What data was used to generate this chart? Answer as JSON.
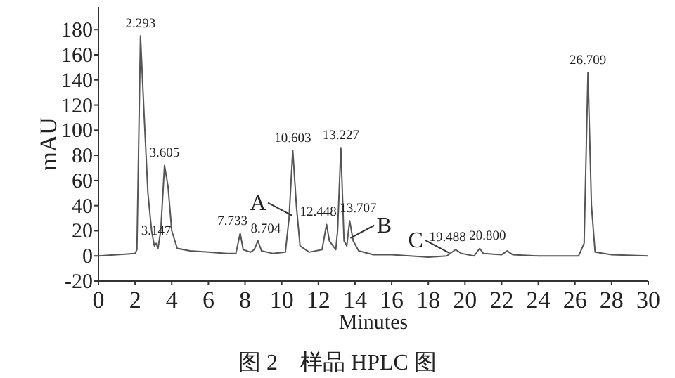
{
  "chart_data": {
    "type": "line",
    "xlabel": "Minutes",
    "ylabel": "mAU",
    "xlim": [
      0,
      30
    ],
    "xticks": [
      0,
      2,
      4,
      6,
      8,
      10,
      12,
      14,
      16,
      18,
      20,
      22,
      24,
      26,
      28,
      30
    ],
    "ylim": [
      -20,
      198
    ],
    "yticks": [
      -20,
      0,
      20,
      40,
      60,
      80,
      100,
      120,
      140,
      160,
      180
    ],
    "grid": false,
    "line_style": "solid",
    "series": [
      {
        "color": "#555555",
        "x": [
          0,
          2.0,
          2.1,
          2.293,
          2.5,
          2.7,
          2.9,
          3.05,
          3.147,
          3.25,
          3.4,
          3.605,
          3.8,
          4.0,
          4.3,
          5,
          6,
          7,
          7.5,
          7.733,
          7.9,
          8.3,
          8.5,
          8.704,
          8.9,
          9.5,
          10.2,
          10.4,
          10.603,
          10.8,
          11,
          11.5,
          12.2,
          12.448,
          12.6,
          12.8,
          12.95,
          13.05,
          13.227,
          13.4,
          13.55,
          13.707,
          13.9,
          14.2,
          15,
          16,
          17,
          18,
          19,
          19.488,
          19.8,
          20.5,
          20.8,
          21.0,
          22,
          22.3,
          22.6,
          24,
          25.5,
          26.2,
          26.5,
          26.709,
          26.9,
          27.1,
          28,
          30
        ],
        "values": [
          0,
          2,
          5,
          175,
          110,
          50,
          20,
          8,
          10,
          6,
          20,
          72,
          55,
          20,
          6,
          4,
          3,
          2,
          2,
          18,
          5,
          3,
          5,
          12,
          4,
          2,
          3,
          30,
          84,
          40,
          8,
          3,
          5,
          25,
          12,
          8,
          5,
          20,
          86,
          12,
          8,
          28,
          12,
          4,
          1,
          1,
          0,
          -1,
          0,
          5,
          2,
          0,
          6,
          2,
          1,
          4,
          1,
          0,
          0,
          0,
          10,
          146,
          40,
          3,
          1,
          0
        ]
      }
    ],
    "annotations": [
      {
        "text": "2.293",
        "x": 2.293,
        "y": 175
      },
      {
        "text": "3.147",
        "x": 3.147,
        "y": 10
      },
      {
        "text": "3.605",
        "x": 3.605,
        "y": 72
      },
      {
        "text": "7.733",
        "x": 7.733,
        "y": 18
      },
      {
        "text": "8.704",
        "x": 8.704,
        "y": 12
      },
      {
        "text": "10.603",
        "x": 10.603,
        "y": 84
      },
      {
        "text": "12.448",
        "x": 12.448,
        "y": 25
      },
      {
        "text": "13.227",
        "x": 13.227,
        "y": 86
      },
      {
        "text": "13.707",
        "x": 13.707,
        "y": 28
      },
      {
        "text": "19.488",
        "x": 19.488,
        "y": 5
      },
      {
        "text": "20.800",
        "x": 20.8,
        "y": 6
      },
      {
        "text": "26.709",
        "x": 26.709,
        "y": 146
      },
      {
        "text": "A",
        "x": 10.4,
        "y": 30
      },
      {
        "text": "B",
        "x": 13.9,
        "y": 12
      },
      {
        "text": "C",
        "x": 19,
        "y": 0
      },
      "图 2　样品 HPLC 图"
    ]
  }
}
